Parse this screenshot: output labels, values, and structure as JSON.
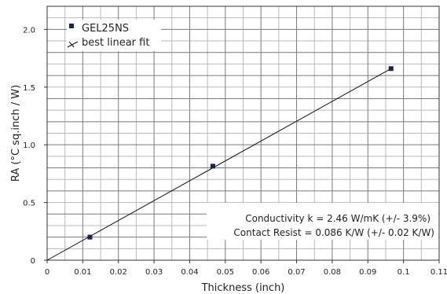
{
  "chart_data": {
    "type": "scatter",
    "xlabel": "Thickness (inch)",
    "ylabel": "RA (°C sq.inch / W)",
    "xlim": [
      0,
      0.11
    ],
    "ylim": [
      0,
      2.2
    ],
    "x_ticks": [
      "0",
      "0.01",
      "0.02",
      "0.03",
      "0.04",
      "0.05",
      "0.06",
      "0.07",
      "0.08",
      "0.09",
      "0.1",
      "0.11"
    ],
    "y_ticks": [
      "0",
      "0.5",
      "1.0",
      "1.5",
      "2.0"
    ],
    "grid": true,
    "legend_position": "top-left",
    "series": [
      {
        "name": "GEL25NS",
        "kind": "points",
        "color": "#1a2452",
        "x": [
          0.012,
          0.0465,
          0.0965
        ],
        "y": [
          0.2,
          0.815,
          1.66
        ]
      },
      {
        "name": "best linear fit",
        "kind": "line",
        "color": "#111111",
        "x": [
          0,
          0.0965
        ],
        "y": [
          0,
          1.66
        ]
      }
    ],
    "annotations": [
      "Conductivity k = 2.46 W/mK (+/- 3.9%)",
      "Contact Resist = 0.086 K/W (+/- 0.02 K/W)"
    ]
  }
}
